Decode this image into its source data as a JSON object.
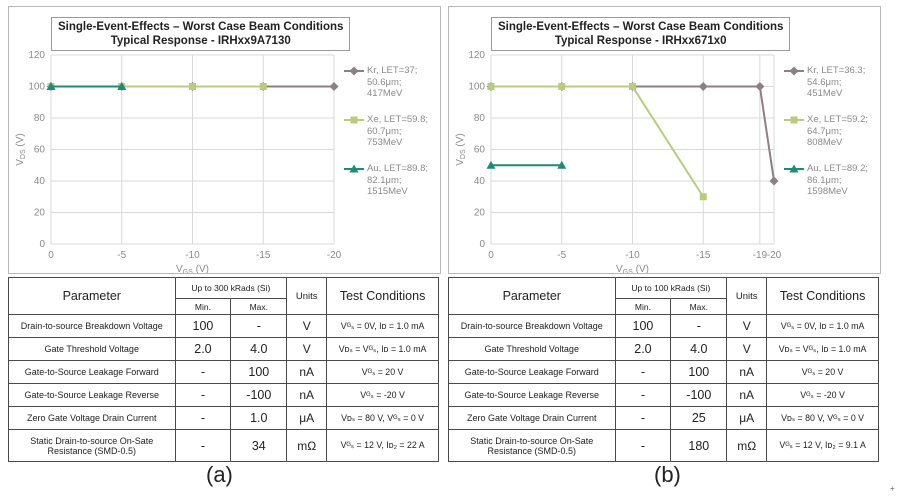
{
  "chart_data": [
    {
      "type": "line",
      "title": "Single-Event-Effects – Worst Case Beam Conditions",
      "subtitle": "Typical Response - IRHxx9A7130",
      "xlabel": "V_GS (V)",
      "ylabel": "V_DS (V)",
      "x_ticks": [
        "0",
        "-5",
        "-10",
        "-15",
        "-20"
      ],
      "y_ticks": [
        "0",
        "20",
        "40",
        "60",
        "80",
        "100",
        "120"
      ],
      "xlim": [
        0,
        -20
      ],
      "ylim": [
        0,
        120
      ],
      "legend_position": "right",
      "series": [
        {
          "name": "Kr, LET=37; 50.6μm; 417MeV",
          "legend_lines": [
            "Kr, LET=37;",
            "50.6μm;",
            "417MeV"
          ],
          "color": "#8c7f86",
          "marker": "diamond",
          "x": [
            0,
            -5,
            -10,
            -15,
            -20
          ],
          "y": [
            100,
            100,
            100,
            100,
            100
          ]
        },
        {
          "name": "Xe, LET=59.8; 60.7μm; 753MeV",
          "legend_lines": [
            "Xe, LET=59.8;",
            "60.7μm;",
            "753MeV"
          ],
          "color": "#b9cc7c",
          "marker": "square",
          "x": [
            0,
            -5,
            -10,
            -15
          ],
          "y": [
            100,
            100,
            100,
            100
          ]
        },
        {
          "name": "Au, LET=89.8; 82.1μm; 1515MeV",
          "legend_lines": [
            "Au, LET=89.8;",
            "82.1μm;",
            "1515MeV"
          ],
          "color": "#1e8a78",
          "marker": "triangle",
          "x": [
            0,
            -5
          ],
          "y": [
            100,
            100
          ]
        }
      ]
    },
    {
      "type": "line",
      "title": "Single-Event-Effects – Worst Case Beam Conditions",
      "subtitle": "Typical Response - IRHxx671x0",
      "xlabel": "V_GS (V)",
      "ylabel": "V_DS (V)",
      "x_ticks": [
        "0",
        "-5",
        "-10",
        "-15",
        "-19",
        "-20"
      ],
      "y_ticks": [
        "0",
        "20",
        "40",
        "60",
        "80",
        "100",
        "120"
      ],
      "xlim": [
        0,
        -20
      ],
      "ylim": [
        0,
        120
      ],
      "legend_position": "right",
      "series": [
        {
          "name": "Kr, LET=36.3; 54.6μm; 451MeV",
          "legend_lines": [
            "Kr, LET=36.3;",
            "54.6μm;",
            "451MeV"
          ],
          "color": "#8c7f86",
          "marker": "diamond",
          "x": [
            0,
            -5,
            -10,
            -15,
            -19,
            -20
          ],
          "y": [
            100,
            100,
            100,
            100,
            100,
            40
          ]
        },
        {
          "name": "Xe, LET=59.2; 64.7μm; 808MeV",
          "legend_lines": [
            "Xe, LET=59.2;",
            "64.7μm;",
            "808MeV"
          ],
          "color": "#b9cc7c",
          "marker": "square",
          "x": [
            0,
            -5,
            -10,
            -15
          ],
          "y": [
            100,
            100,
            100,
            30
          ]
        },
        {
          "name": "Au, LET=89.2; 86.1μm; 1598MeV",
          "legend_lines": [
            "Au, LET=89.2;",
            "86.1μm;",
            "1598MeV"
          ],
          "color": "#1e8a78",
          "marker": "triangle",
          "x": [
            0,
            -5
          ],
          "y": [
            50,
            50
          ]
        }
      ]
    }
  ],
  "tables": [
    {
      "header": {
        "parameter": "Parameter",
        "rads": "Up to 300 kRads (Si)",
        "min": "Min.",
        "max": "Max.",
        "units": "Units",
        "conditions": "Test Conditions"
      },
      "rows": [
        {
          "parameter": "Drain-to-source Breakdown Voltage",
          "min": "100",
          "max": "-",
          "units": "V",
          "conditions": "Vᴳₛ = 0V, Iᴅ = 1.0 mA"
        },
        {
          "parameter": "Gate Threshold Voltage",
          "min": "2.0",
          "max": "4.0",
          "units": "V",
          "conditions": "Vᴅₛ = Vᴳₛ, Iᴅ = 1.0 mA"
        },
        {
          "parameter": "Gate-to-Source Leakage Forward",
          "min": "-",
          "max": "100",
          "units": "nA",
          "conditions": "Vᴳₛ = 20 V"
        },
        {
          "parameter": "Gate-to-Source Leakage Reverse",
          "min": "-",
          "max": "-100",
          "units": "nA",
          "conditions": "Vᴳₛ = -20 V"
        },
        {
          "parameter": "Zero Gate Voltage Drain Current",
          "min": "-",
          "max": "1.0",
          "units": "μA",
          "conditions": "Vᴅₛ = 80 V, Vᴳₛ = 0 V"
        },
        {
          "parameter": "Static Drain-to-source On-Sate Resistance (SMD-0.5)",
          "min": "-",
          "max": "34",
          "units": "mΩ",
          "conditions": "Vᴳₛ = 12 V, Iᴅ₂ = 22 A"
        }
      ],
      "caption": "(a)"
    },
    {
      "header": {
        "parameter": "Parameter",
        "rads": "Up to 100 kRads (Si)",
        "min": "Min.",
        "max": "Max.",
        "units": "Units",
        "conditions": "Test Conditions"
      },
      "rows": [
        {
          "parameter": "Drain-to-source Breakdown Voltage",
          "min": "100",
          "max": "-",
          "units": "V",
          "conditions": "Vᴳₛ = 0V, Iᴅ = 1.0 mA"
        },
        {
          "parameter": "Gate Threshold Voltage",
          "min": "2.0",
          "max": "4.0",
          "units": "V",
          "conditions": "Vᴅₛ = Vᴳₛ, Iᴅ = 1.0 mA"
        },
        {
          "parameter": "Gate-to-Source Leakage Forward",
          "min": "-",
          "max": "100",
          "units": "nA",
          "conditions": "Vᴳₛ = 20 V"
        },
        {
          "parameter": "Gate-to-Source Leakage Reverse",
          "min": "-",
          "max": "-100",
          "units": "nA",
          "conditions": "Vᴳₛ = -20 V"
        },
        {
          "parameter": "Zero Gate Voltage Drain Current",
          "min": "-",
          "max": "25",
          "units": "μA",
          "conditions": "Vᴅₛ = 80 V, Vᴳₛ = 0 V"
        },
        {
          "parameter": "Static Drain-to-source On-Sate Resistance (SMD-0.5)",
          "min": "-",
          "max": "180",
          "units": "mΩ",
          "conditions": "Vᴳₛ = 12 V, Iᴅ₂ = 9.1 A"
        }
      ],
      "caption": "(b)"
    }
  ],
  "corner_mark": "+"
}
